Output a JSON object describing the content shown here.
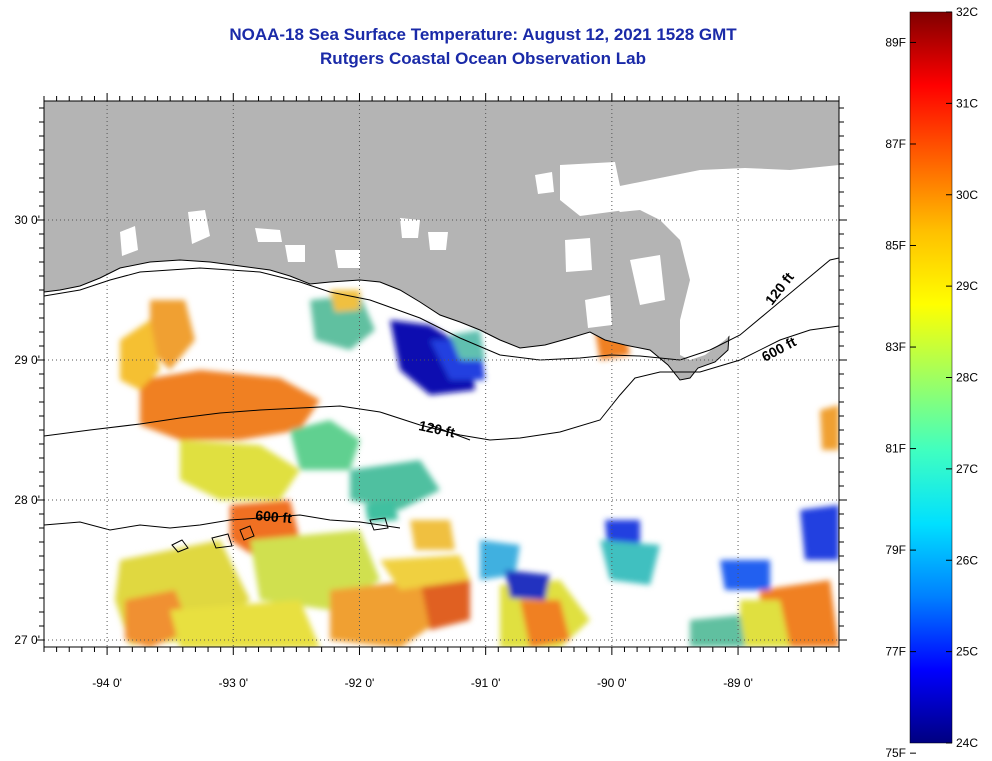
{
  "header": {
    "title": "NOAA-18 Sea Surface Temperature:  August 12, 2021 1528 GMT",
    "subtitle": "Rutgers Coastal Ocean Observation Lab"
  },
  "map": {
    "lon_range": [
      -94.5,
      -88.2
    ],
    "lat_range": [
      26.95,
      30.85
    ],
    "lon_ticks": [
      {
        "value": -94,
        "label": "-94 0'"
      },
      {
        "value": -93,
        "label": "-93 0'"
      },
      {
        "value": -92,
        "label": "-92 0'"
      },
      {
        "value": -91,
        "label": "-91 0'"
      },
      {
        "value": -90,
        "label": "-90 0'"
      },
      {
        "value": -89,
        "label": "-89 0'"
      }
    ],
    "lat_ticks": [
      {
        "value": 30,
        "label": "30 0'"
      },
      {
        "value": 29,
        "label": "29 0'"
      },
      {
        "value": 28,
        "label": "28 0'"
      },
      {
        "value": 27,
        "label": "27 0'"
      }
    ],
    "contour_labels": [
      {
        "text": "120 ft"
      },
      {
        "text": "120 ft"
      },
      {
        "text": "600 ft"
      },
      {
        "text": "600 ft"
      }
    ],
    "colors": {
      "land": "#b4b4b4",
      "no_data": "#ffffff",
      "gridline": "#555555"
    }
  },
  "colorbar": {
    "min_c": 24,
    "max_c": 32,
    "celsius_labels": [
      "32C",
      "31C",
      "30C",
      "29C",
      "28C",
      "27C",
      "26C",
      "25C",
      "24C"
    ],
    "fahrenheit_labels": [
      "89F",
      "87F",
      "85F",
      "83F",
      "81F",
      "79F",
      "77F",
      "75F"
    ],
    "stops": [
      "#000080",
      "#0000ff",
      "#0080ff",
      "#00e0ff",
      "#40ffc0",
      "#a0ff60",
      "#ffff00",
      "#ffc000",
      "#ff6000",
      "#ff0000",
      "#800000"
    ]
  }
}
